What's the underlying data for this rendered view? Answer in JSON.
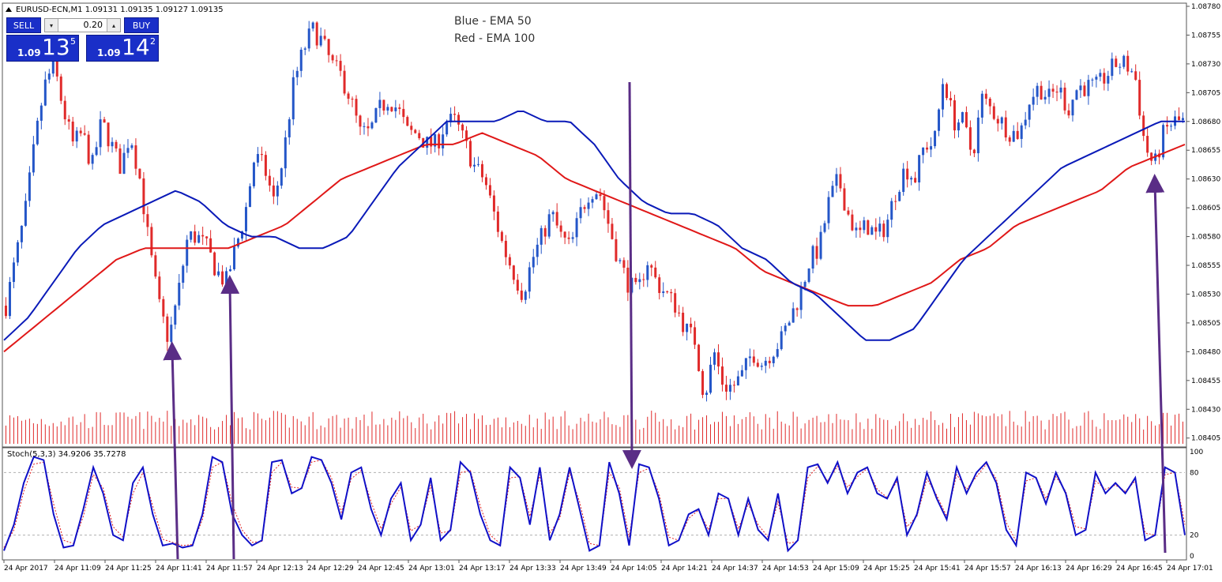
{
  "symbol_header": "EURUSD-ECN,M1  1.09131 1.09135 1.09127 1.09135",
  "legend": {
    "line1": "Blue - EMA 50",
    "line2": "Red - EMA 100"
  },
  "trade_panel": {
    "sell_label": "SELL",
    "buy_label": "BUY",
    "lot_value": "0.20",
    "lot_down_glyph": "▾",
    "lot_up_glyph": "▴",
    "sell_price_small": "1.09",
    "sell_price_big": "13",
    "sell_price_sup": "5",
    "buy_price_small": "1.09",
    "buy_price_big": "14",
    "buy_price_sup": "2"
  },
  "indicator_header": "Stoch(5,3,3) 34.9206 35.7278",
  "colors": {
    "bull": "#2456c8",
    "bear": "#e02a2a",
    "ema50": "#0a1ab8",
    "ema100": "#e01818",
    "arrow": "#5a2d86",
    "volume": "#e02a2a",
    "stoch_main": "#1010c8",
    "stoch_signal": "#e02020",
    "frame": "#555555",
    "level_line": "#b0b0b0"
  },
  "chart_data": {
    "type": "candlestick",
    "y_axis_ticks": [
      "1.08780",
      "1.08755",
      "1.08730",
      "1.08705",
      "1.08680",
      "1.08655",
      "1.08630",
      "1.08605",
      "1.08580",
      "1.08555",
      "1.08530",
      "1.08505",
      "1.08480",
      "1.08455",
      "1.08430",
      "1.08405"
    ],
    "ylim": [
      1.084,
      1.0878
    ],
    "x_axis_ticks": [
      "24 Apr 2017",
      "24 Apr 11:09",
      "24 Apr 11:25",
      "24 Apr 11:41",
      "24 Apr 11:57",
      "24 Apr 12:13",
      "24 Apr 12:29",
      "24 Apr 12:45",
      "24 Apr 13:01",
      "24 Apr 13:17",
      "24 Apr 13:33",
      "24 Apr 13:49",
      "24 Apr 14:05",
      "24 Apr 14:21",
      "24 Apr 14:37",
      "24 Apr 14:53",
      "24 Apr 15:09",
      "24 Apr 15:25",
      "24 Apr 15:41",
      "24 Apr 15:57",
      "24 Apr 16:13",
      "24 Apr 16:29",
      "24 Apr 16:45",
      "24 Apr 17:01"
    ],
    "close_path": [
      1.0852,
      1.0856,
      1.086,
      1.0866,
      1.0871,
      1.0873,
      1.0869,
      1.0866,
      1.0867,
      1.0864,
      1.0868,
      1.0866,
      1.0864,
      1.0867,
      1.0863,
      1.0857,
      1.0852,
      1.0849,
      1.0853,
      1.0858,
      1.0858,
      1.0857,
      1.0855,
      1.0854,
      1.0857,
      1.086,
      1.0865,
      1.0864,
      1.0861,
      1.0865,
      1.0871,
      1.0874,
      1.0876,
      1.0875,
      1.0873,
      1.0872,
      1.087,
      1.0867,
      1.0867,
      1.0869,
      1.087,
      1.0869,
      1.0867,
      1.0867,
      1.0866,
      1.0866,
      1.0868,
      1.0868,
      1.0866,
      1.0864,
      1.0863,
      1.086,
      1.0857,
      1.0855,
      1.0853,
      1.0856,
      1.0858,
      1.086,
      1.0858,
      1.0857,
      1.086,
      1.0862,
      1.0862,
      1.0859,
      1.0856,
      1.0854,
      1.0853,
      1.0856,
      1.0854,
      1.0853,
      1.0852,
      1.085,
      1.0849,
      1.0844,
      1.0848,
      1.0845,
      1.0845,
      1.0846,
      1.0848,
      1.0847,
      1.0848,
      1.0849,
      1.0851,
      1.0853,
      1.0856,
      1.0857,
      1.0861,
      1.0863,
      1.086,
      1.0858,
      1.0859,
      1.0858,
      1.0859,
      1.0862,
      1.0864,
      1.0863,
      1.0866,
      1.0866,
      1.0872,
      1.0868,
      1.0868,
      1.0865,
      1.087,
      1.0869,
      1.0868,
      1.0867,
      1.0867,
      1.087,
      1.0871,
      1.087,
      1.0871,
      1.0869,
      1.0871,
      1.0871,
      1.0871,
      1.0872,
      1.0873,
      1.0873,
      1.0872,
      1.0866,
      1.0864,
      1.0867,
      1.0868,
      1.0868
    ],
    "ema50": [
      1.0849,
      1.0851,
      1.0854,
      1.0857,
      1.0859,
      1.086,
      1.0861,
      1.0862,
      1.0861,
      1.0859,
      1.0858,
      1.0858,
      1.0857,
      1.0857,
      1.0858,
      1.0861,
      1.0864,
      1.0866,
      1.0868,
      1.0868,
      1.0868,
      1.0869,
      1.0868,
      1.0868,
      1.0866,
      1.0863,
      1.0861,
      1.086,
      1.086,
      1.0859,
      1.0857,
      1.0856,
      1.0854,
      1.0853,
      1.0851,
      1.0849,
      1.0849,
      1.085,
      1.0853,
      1.0856,
      1.0858,
      1.086,
      1.0862,
      1.0864,
      1.0865,
      1.0866,
      1.0867,
      1.0868,
      1.0868
    ],
    "ema100": [
      1.0848,
      1.085,
      1.0852,
      1.0854,
      1.0856,
      1.0857,
      1.0857,
      1.0857,
      1.0857,
      1.0858,
      1.0859,
      1.0861,
      1.0863,
      1.0864,
      1.0865,
      1.0866,
      1.0866,
      1.0867,
      1.0866,
      1.0865,
      1.0863,
      1.0862,
      1.0861,
      1.086,
      1.0859,
      1.0858,
      1.0857,
      1.0855,
      1.0854,
      1.0853,
      1.0852,
      1.0852,
      1.0853,
      1.0854,
      1.0856,
      1.0857,
      1.0859,
      1.086,
      1.0861,
      1.0862,
      1.0864,
      1.0865,
      1.0866
    ],
    "volume_note": "per-bar tick volume bars along chart bottom",
    "stochastic": {
      "k": 5,
      "d": 3,
      "slowing": 3,
      "main_value": 34.9206,
      "signal_value": 35.7278,
      "levels": [
        "100",
        "80",
        "20",
        "0"
      ],
      "main": [
        5,
        30,
        70,
        95,
        92,
        40,
        8,
        10,
        45,
        85,
        60,
        20,
        15,
        70,
        85,
        40,
        10,
        12,
        8,
        10,
        40,
        95,
        90,
        40,
        20,
        10,
        15,
        90,
        92,
        60,
        65,
        95,
        92,
        70,
        35,
        80,
        85,
        45,
        20,
        55,
        70,
        15,
        30,
        75,
        15,
        25,
        90,
        80,
        40,
        15,
        10,
        85,
        75,
        30,
        85,
        15,
        40,
        85,
        45,
        5,
        10,
        90,
        60,
        10,
        88,
        85,
        55,
        10,
        15,
        40,
        45,
        20,
        60,
        55,
        20,
        55,
        25,
        15,
        60,
        5,
        15,
        85,
        88,
        70,
        90,
        60,
        80,
        85,
        60,
        55,
        75,
        20,
        40,
        80,
        55,
        35,
        85,
        60,
        80,
        90,
        70,
        25,
        10,
        80,
        75,
        50,
        80,
        60,
        20,
        25,
        80,
        60,
        70,
        60,
        75,
        15,
        20,
        85,
        80,
        20
      ],
      "signal": [
        8,
        25,
        62,
        88,
        90,
        50,
        15,
        12,
        38,
        78,
        65,
        28,
        18,
        60,
        80,
        48,
        16,
        13,
        10,
        11,
        35,
        85,
        90,
        50,
        25,
        13,
        14,
        80,
        90,
        66,
        65,
        90,
        92,
        75,
        42,
        74,
        82,
        52,
        26,
        50,
        66,
        24,
        30,
        68,
        22,
        24,
        80,
        82,
        48,
        20,
        12,
        75,
        76,
        38,
        78,
        22,
        36,
        80,
        52,
        12,
        10,
        80,
        66,
        18,
        80,
        84,
        60,
        18,
        15,
        36,
        44,
        25,
        55,
        55,
        26,
        50,
        30,
        18,
        52,
        12,
        14,
        75,
        86,
        72,
        86,
        66,
        76,
        84,
        64,
        56,
        72,
        28,
        38,
        74,
        58,
        38,
        78,
        64,
        76,
        88,
        74,
        32,
        14,
        72,
        75,
        55,
        76,
        62,
        28,
        26,
        72,
        64,
        68,
        62,
        72,
        22,
        20,
        78,
        80,
        30
      ]
    },
    "annotations": [
      "arrows linking stochastic extremes to price swings"
    ]
  }
}
